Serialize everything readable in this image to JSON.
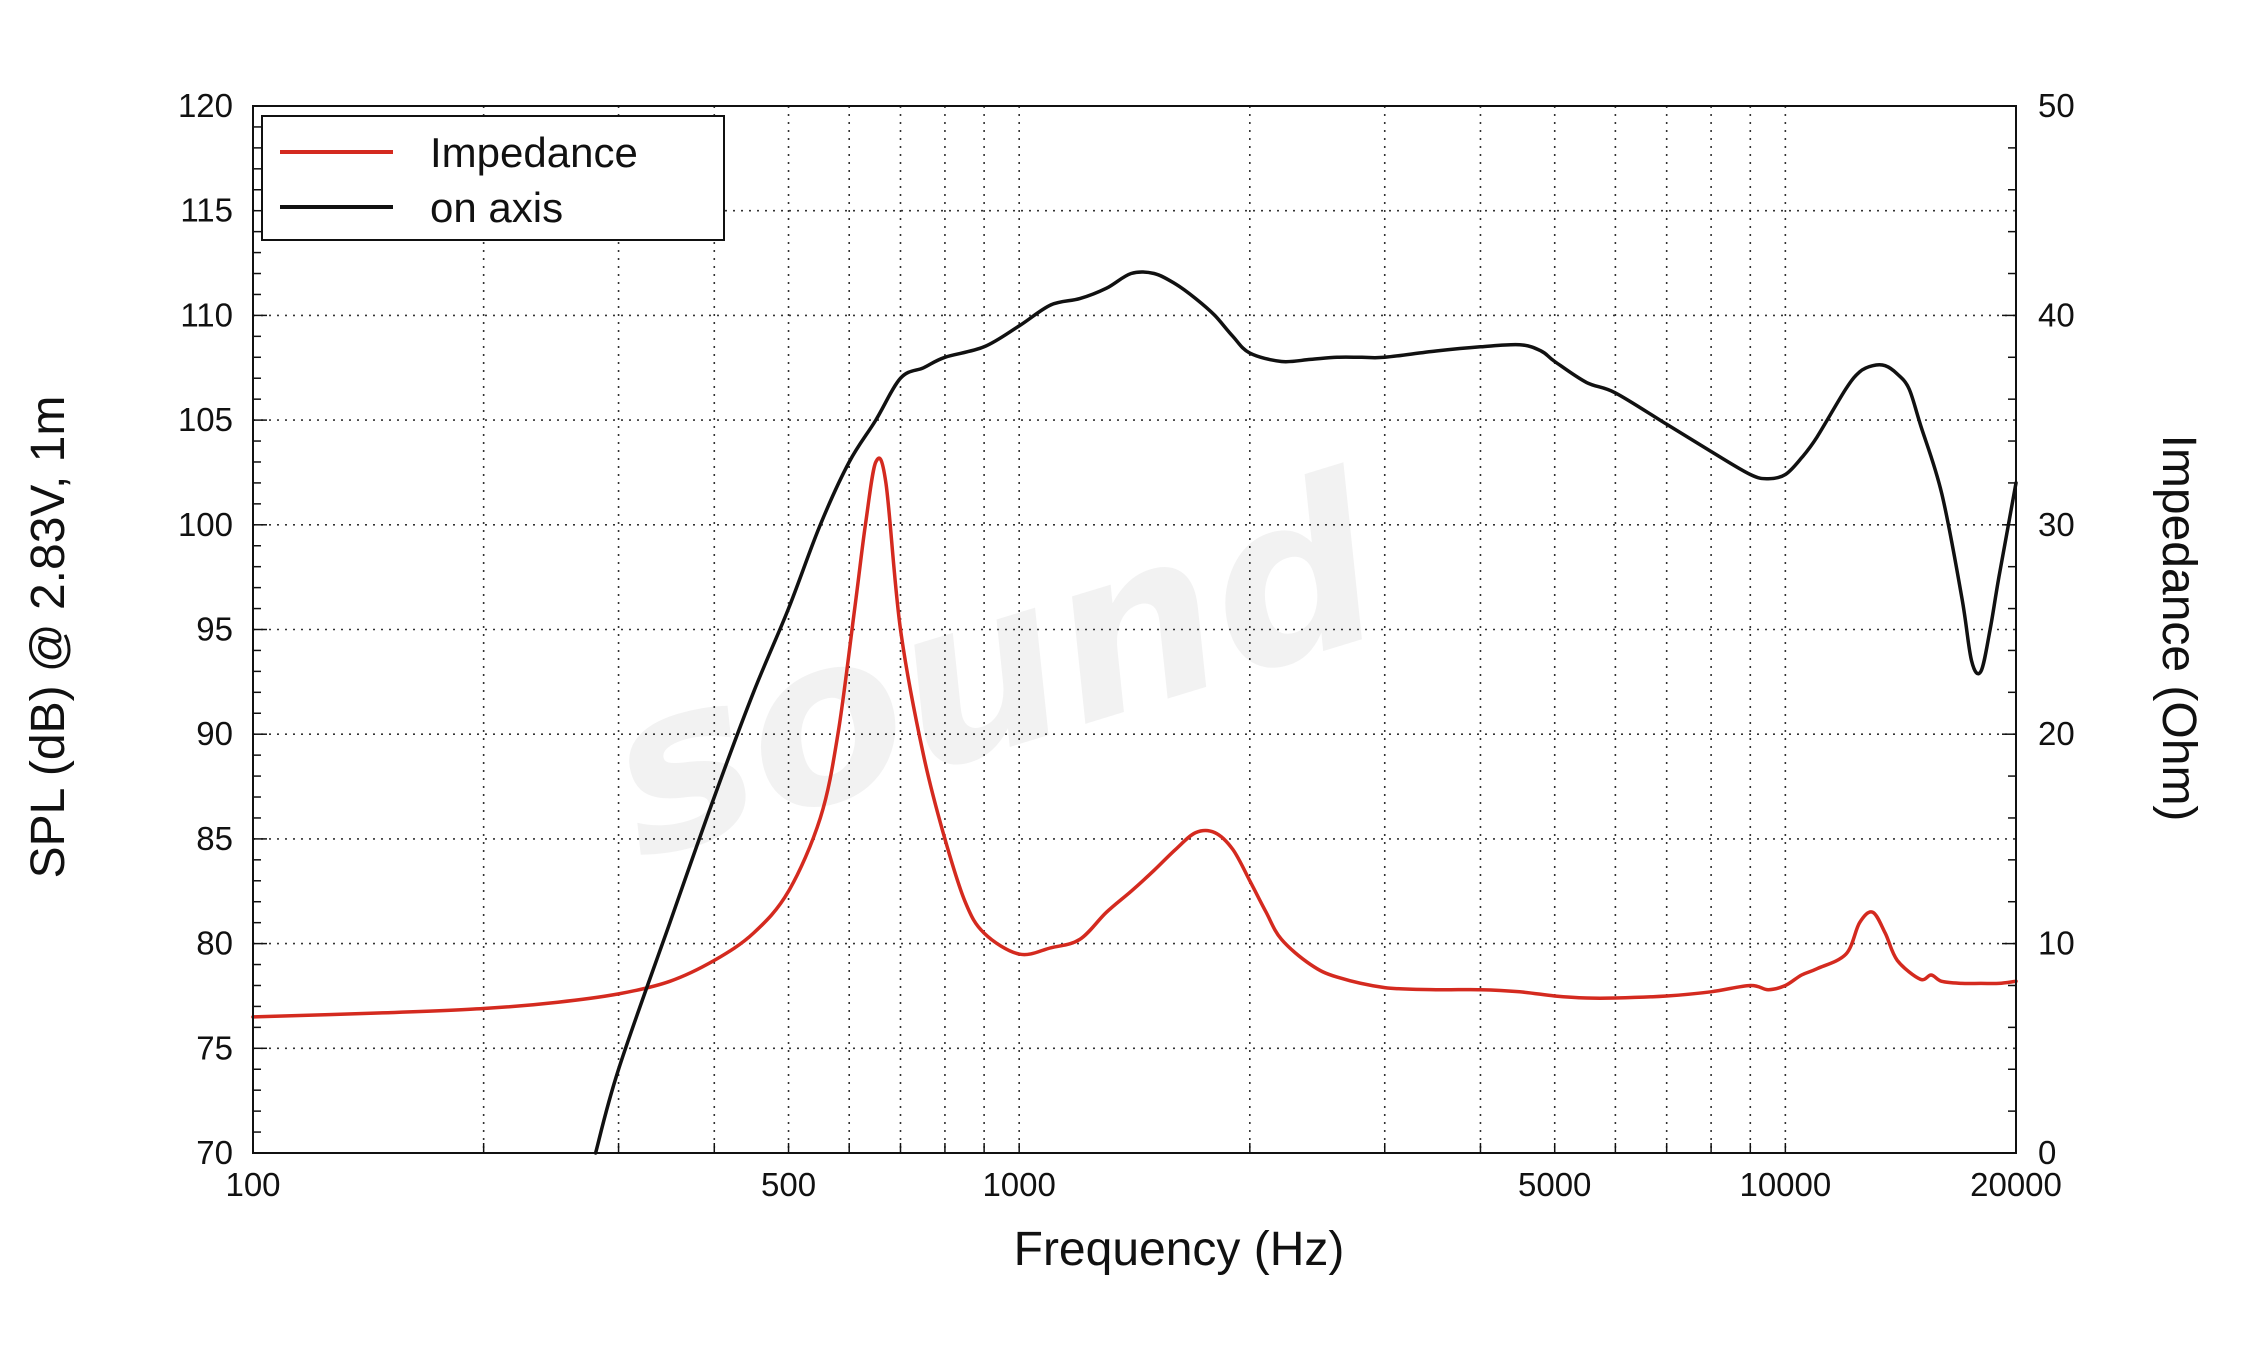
{
  "chart_data": {
    "type": "line",
    "title": "",
    "xlabel": "Frequency (Hz)",
    "ylabel_left": "SPL (dB) @ 2.83V, 1m",
    "ylabel_right": "Impedance (Ohm)",
    "x_scale": "log",
    "xlim": [
      100,
      20000
    ],
    "ylim_left": [
      70,
      120
    ],
    "ylim_right": [
      0,
      50
    ],
    "x_ticks": [
      100,
      500,
      1000,
      5000,
      10000,
      20000
    ],
    "x_tick_labels": [
      "100",
      "500",
      "1000",
      "5000",
      "10000",
      "20000"
    ],
    "y_left_ticks": [
      70,
      75,
      80,
      85,
      90,
      95,
      100,
      105,
      110,
      115,
      120
    ],
    "y_left_tick_labels": [
      "70",
      "75",
      "80",
      "85",
      "90",
      "95",
      "100",
      "105",
      "110",
      "115",
      "120"
    ],
    "y_right_ticks": [
      0,
      10,
      20,
      30,
      40,
      50
    ],
    "y_right_tick_labels": [
      "0",
      "10",
      "20",
      "30",
      "40",
      "50"
    ],
    "grid": true,
    "legend_position": "top-left",
    "watermark": "sound",
    "series": [
      {
        "name": "Impedance",
        "axis": "right",
        "color": "#d42a1f",
        "x": [
          100,
          150,
          200,
          250,
          300,
          350,
          400,
          450,
          500,
          550,
          580,
          610,
          630,
          650,
          670,
          700,
          750,
          800,
          850,
          900,
          1000,
          1100,
          1200,
          1300,
          1400,
          1500,
          1600,
          1700,
          1800,
          1900,
          2000,
          2100,
          2200,
          2400,
          2600,
          3000,
          3500,
          4000,
          4500,
          5000,
          5500,
          6000,
          7000,
          8000,
          9000,
          9500,
          10000,
          10500,
          11000,
          12000,
          12500,
          13000,
          13500,
          14000,
          15000,
          15500,
          16000,
          17000,
          18000,
          19000,
          20000
        ],
        "y": [
          6.5,
          6.7,
          6.9,
          7.2,
          7.6,
          8.2,
          9.2,
          10.5,
          12.5,
          16.0,
          20.0,
          26.0,
          30.0,
          33.0,
          32.0,
          25.0,
          19.0,
          15.0,
          12.0,
          10.5,
          9.5,
          9.8,
          10.2,
          11.5,
          12.5,
          13.5,
          14.5,
          15.3,
          15.3,
          14.5,
          13.0,
          11.5,
          10.2,
          9.0,
          8.4,
          7.9,
          7.8,
          7.8,
          7.7,
          7.5,
          7.4,
          7.4,
          7.5,
          7.7,
          8.0,
          7.8,
          8.0,
          8.5,
          8.8,
          9.5,
          11.0,
          11.5,
          10.5,
          9.2,
          8.3,
          8.5,
          8.2,
          8.1,
          8.1,
          8.1,
          8.2
        ]
      },
      {
        "name": "on axis",
        "axis": "left",
        "color": "#111111",
        "x": [
          280,
          300,
          350,
          400,
          450,
          500,
          550,
          600,
          650,
          700,
          750,
          800,
          900,
          1000,
          1100,
          1200,
          1300,
          1400,
          1500,
          1600,
          1700,
          1800,
          1900,
          2000,
          2200,
          2400,
          2600,
          2800,
          3000,
          3500,
          4000,
          4500,
          4800,
          5000,
          5500,
          6000,
          7000,
          8000,
          9000,
          9500,
          10000,
          10500,
          11000,
          12000,
          12500,
          13000,
          13500,
          14000,
          14500,
          15000,
          16000,
          17000,
          17500,
          18000,
          18500,
          19000,
          20000
        ],
        "y": [
          70,
          74,
          81,
          87,
          92,
          96,
          100,
          103,
          105,
          107,
          107.5,
          108,
          108.5,
          109.5,
          110.5,
          110.8,
          111.3,
          112,
          112,
          111.5,
          110.8,
          110,
          109,
          108.2,
          107.8,
          107.9,
          108,
          108,
          108,
          108.3,
          108.5,
          108.6,
          108.3,
          107.8,
          106.8,
          106.3,
          104.8,
          103.5,
          102.4,
          102.2,
          102.4,
          103.2,
          104.2,
          106.5,
          107.3,
          107.6,
          107.6,
          107.2,
          106.5,
          104.8,
          101.5,
          96.5,
          93.5,
          93,
          95,
          97.5,
          102
        ]
      }
    ]
  }
}
